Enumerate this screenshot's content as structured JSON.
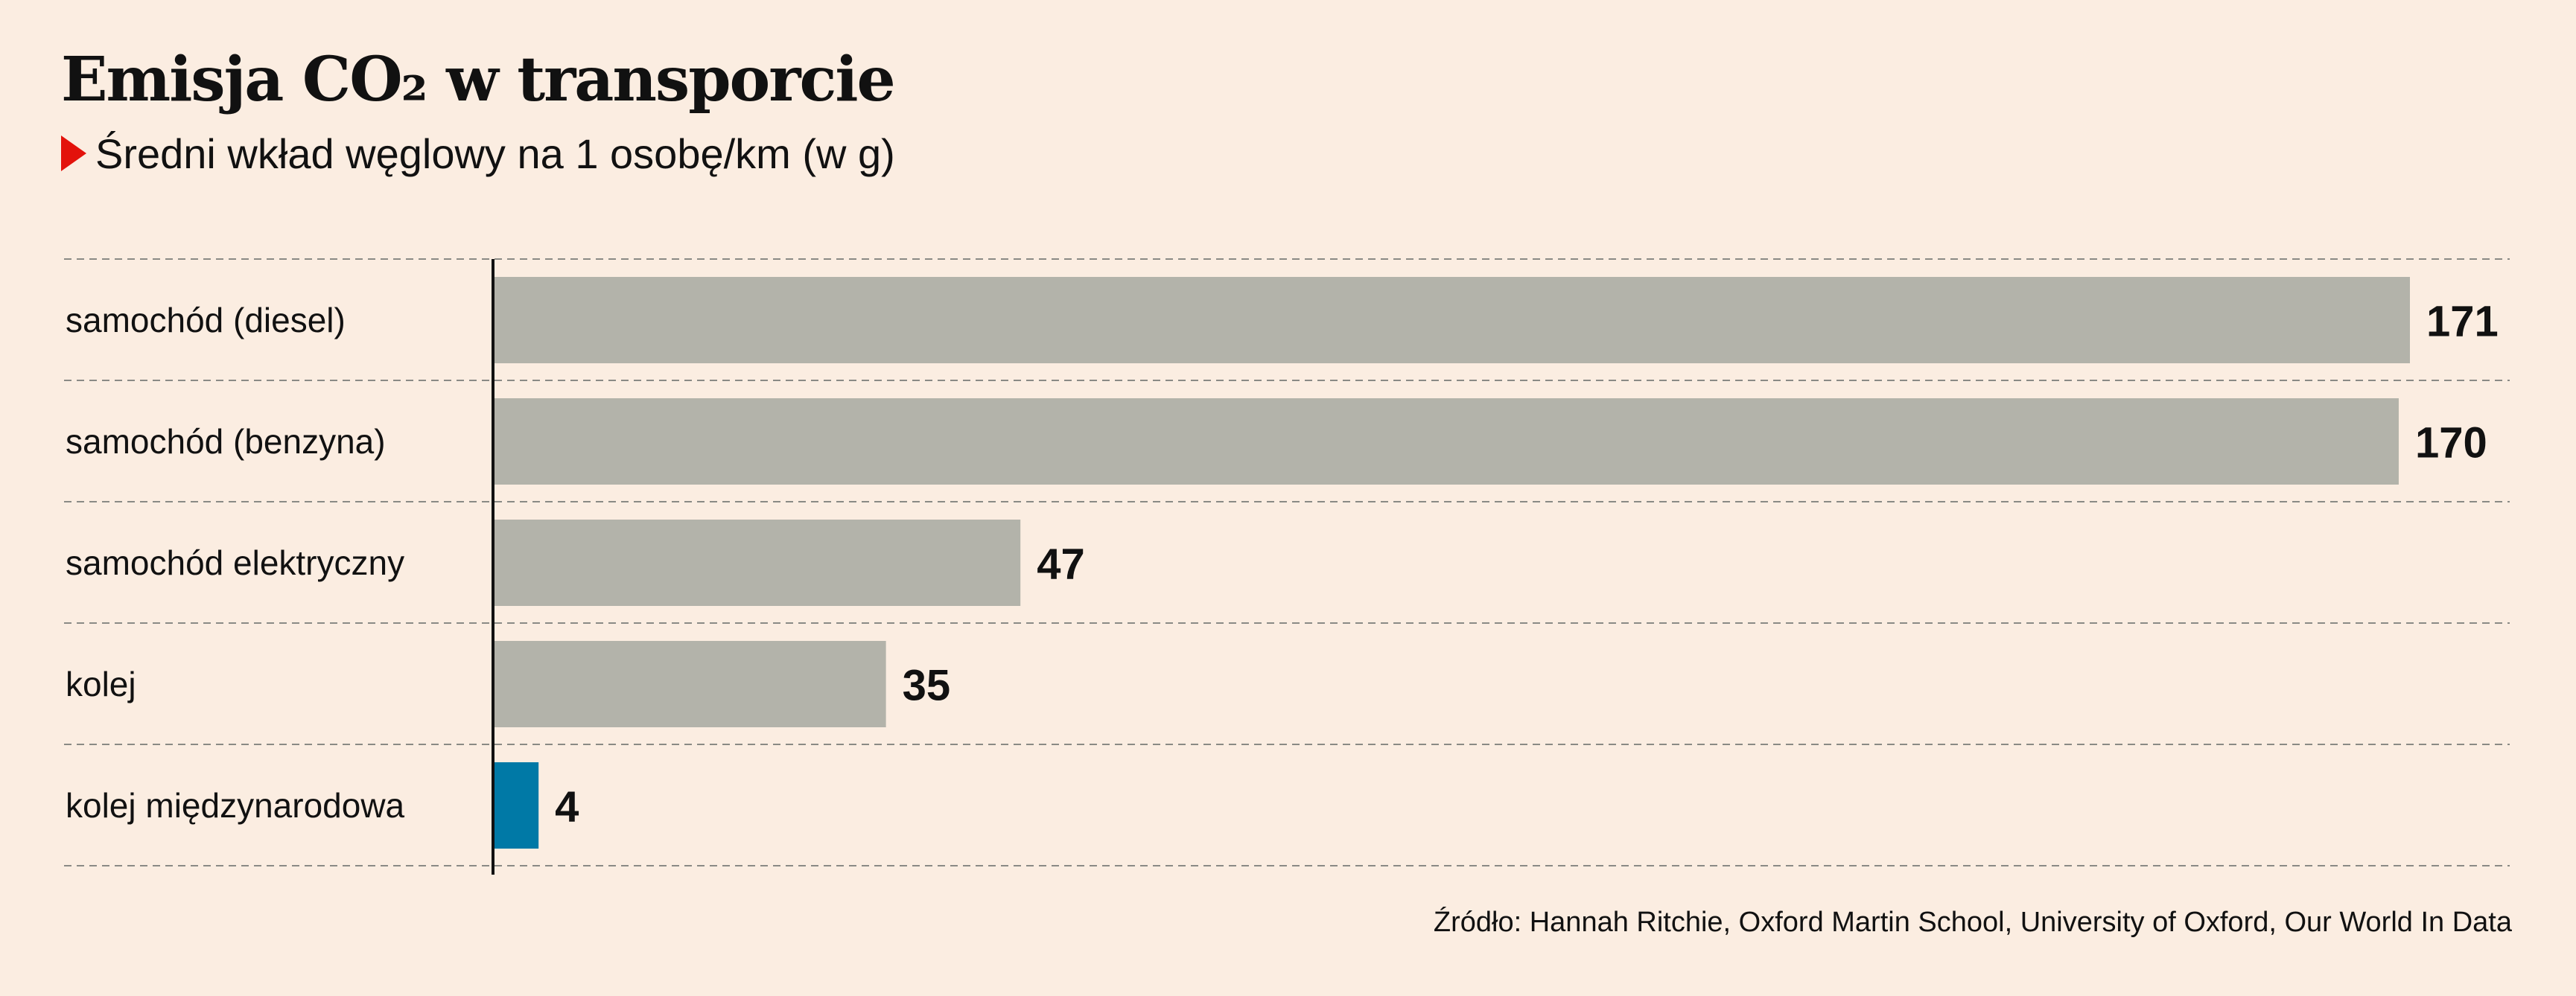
{
  "title": "Emisja CO₂ w transporcie",
  "subtitle": "Średni wkład węglowy na 1 osobę/km (w g)",
  "source": "Źródło: Hannah Ritchie, Oxford Martin School, University of Oxford, Our World In Data",
  "colors": {
    "background": "#fbede1",
    "bar_default": "#b3b3aa",
    "bar_highlight": "#0079a6",
    "marker": "#e3120b",
    "text": "#111111"
  },
  "chart_data": {
    "type": "bar",
    "orientation": "horizontal",
    "categories": [
      "samochód (diesel)",
      "samochód (benzyna)",
      "samochód elektryczny",
      "kolej",
      "kolej międzynarodowa"
    ],
    "values": [
      171,
      170,
      47,
      35,
      4
    ],
    "highlight": [
      "kolej międzynarodowa"
    ],
    "title": "Emisja CO₂ w transporcie",
    "subtitle": "Średni wkład węglowy na 1 osobę/km (w g)",
    "xlim": [
      0,
      171
    ],
    "grid": false,
    "row_separators": "dashed",
    "data_labels": true
  }
}
